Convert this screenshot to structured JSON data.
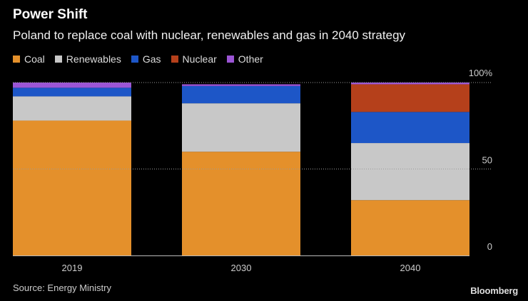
{
  "header": {
    "title": "Power Shift",
    "subtitle": "Poland to replace coal with nuclear, renewables and gas in 2040 strategy"
  },
  "footer": {
    "source": "Source: Energy Ministry",
    "brand": "Bloomberg"
  },
  "chart_data": {
    "type": "bar",
    "stacked": true,
    "categories": [
      "2019",
      "2030",
      "2040"
    ],
    "series": [
      {
        "name": "Coal",
        "color": "#e4902b",
        "values": [
          78,
          60,
          32
        ]
      },
      {
        "name": "Renewables",
        "color": "#c8c8c8",
        "values": [
          14,
          28,
          33
        ]
      },
      {
        "name": "Gas",
        "color": "#1d56c7",
        "values": [
          5,
          10,
          18
        ]
      },
      {
        "name": "Nuclear",
        "color": "#b5401b",
        "values": [
          0,
          0,
          16
        ]
      },
      {
        "name": "Other",
        "color": "#9c55d5",
        "values": [
          3,
          1,
          1
        ]
      }
    ],
    "ylim": [
      0,
      100
    ],
    "yticks": [
      {
        "value": 0,
        "label": "0"
      },
      {
        "value": 50,
        "label": "50"
      },
      {
        "value": 100,
        "label": "100%"
      }
    ],
    "xlabel": "",
    "ylabel": "",
    "legend_position": "top-left",
    "grid": true
  }
}
